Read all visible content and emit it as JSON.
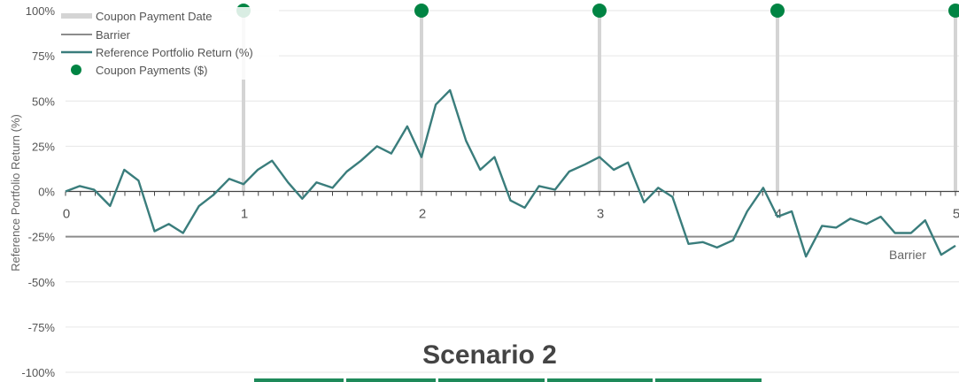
{
  "chart_data": {
    "type": "line",
    "title": "Scenario 2",
    "ylabel": "Reference Portfolio Return (%)",
    "xlabel": "",
    "xlim": [
      0,
      5
    ],
    "ylim": [
      -100,
      100
    ],
    "x_ticks": [
      "0",
      "1",
      "2",
      "3",
      "4",
      "5"
    ],
    "y_ticks": [
      "100%",
      "75%",
      "50%",
      "25%",
      "0%",
      "-25%",
      "-50%",
      "-75%",
      "-100%"
    ],
    "y_tick_values": [
      100,
      75,
      50,
      25,
      0,
      -25,
      -50,
      -75,
      -100
    ],
    "grid": true,
    "legend": {
      "position": "top-left",
      "entries": [
        "Coupon Payment Date",
        "Barrier",
        "Reference Portfolio Return (%)",
        "Coupon Payments ($)"
      ]
    },
    "barrier": {
      "name": "Barrier",
      "value": -25,
      "label": "Barrier"
    },
    "coupon_payment_dates": [
      1,
      2,
      3,
      4,
      5
    ],
    "coupon_payments": {
      "name": "Coupon Payments ($)",
      "x": [
        1,
        2,
        3,
        4,
        5
      ],
      "y": [
        100,
        100,
        100,
        100,
        100
      ]
    },
    "series": [
      {
        "name": "Reference Portfolio Return (%)",
        "x": [
          0,
          0.08,
          0.16,
          0.25,
          0.33,
          0.41,
          0.5,
          0.58,
          0.66,
          0.75,
          0.83,
          0.92,
          1.0,
          1.08,
          1.16,
          1.25,
          1.33,
          1.41,
          1.5,
          1.58,
          1.66,
          1.75,
          1.83,
          1.92,
          2.0,
          2.08,
          2.16,
          2.25,
          2.33,
          2.41,
          2.5,
          2.58,
          2.66,
          2.75,
          2.83,
          2.92,
          3.0,
          3.08,
          3.16,
          3.25,
          3.33,
          3.41,
          3.5,
          3.58,
          3.66,
          3.75,
          3.83,
          3.92,
          4.0,
          4.08,
          4.16,
          4.25,
          4.33,
          4.41,
          4.5,
          4.58,
          4.66,
          4.75,
          4.83,
          4.92,
          5.0
        ],
        "values": [
          0,
          3,
          1,
          -8,
          12,
          6,
          -22,
          -18,
          -23,
          -8,
          -2,
          7,
          4,
          12,
          17,
          5,
          -4,
          5,
          2,
          11,
          17,
          25,
          21,
          36,
          19,
          48,
          56,
          28,
          12,
          19,
          -5,
          -9,
          3,
          1,
          11,
          15,
          19,
          12,
          16,
          -6,
          2,
          -3,
          -29,
          -28,
          -31,
          -27,
          -11,
          2,
          -14,
          -11,
          -36,
          -19,
          -20,
          -15,
          -18,
          -14,
          -23,
          -23,
          -16,
          -35,
          -30
        ]
      }
    ],
    "colors": {
      "return_line": "#3a7d7c",
      "barrier": "#8c8c8c",
      "coupon_date": "#d4d4d4",
      "coupon_dot": "#008443",
      "grid": "#e6e6e6",
      "axis": "#444444",
      "underline": "#1e8a5a"
    }
  }
}
